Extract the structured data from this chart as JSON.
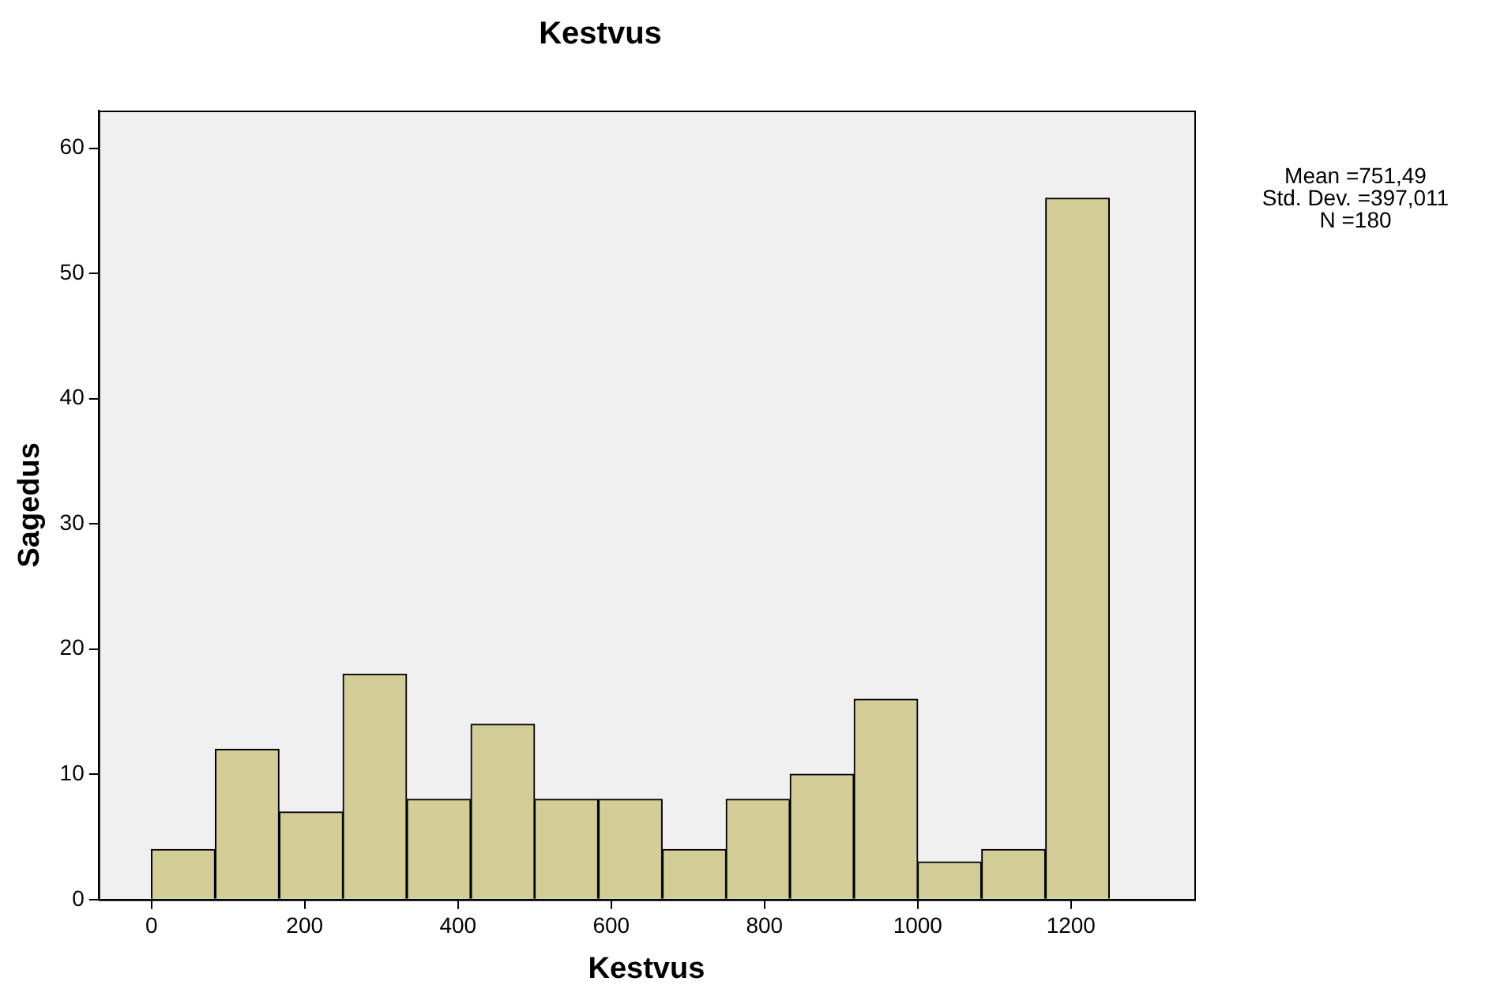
{
  "chart_data": {
    "type": "histogram",
    "title": "Kestvus",
    "xlabel": "Kestvus",
    "ylabel": "Sagedus",
    "bins": [
      0,
      83,
      167,
      250,
      333,
      417,
      500,
      583,
      667,
      750,
      833,
      917,
      1000,
      1083,
      1167,
      1250
    ],
    "values": [
      4,
      12,
      7,
      18,
      8,
      14,
      8,
      8,
      4,
      8,
      10,
      16,
      3,
      4,
      56
    ],
    "color": "#d3ce98",
    "xlim": [
      -69,
      1361
    ],
    "xticks": [
      0,
      200,
      400,
      600,
      800,
      1000,
      1200
    ],
    "ylim": [
      0,
      63
    ],
    "yticks": [
      0,
      10,
      20,
      30,
      40,
      50,
      60
    ],
    "grid": false,
    "legend": false,
    "annotations": [
      "Mean =751,49",
      "Std. Dev. =397,011",
      "N =180"
    ]
  }
}
